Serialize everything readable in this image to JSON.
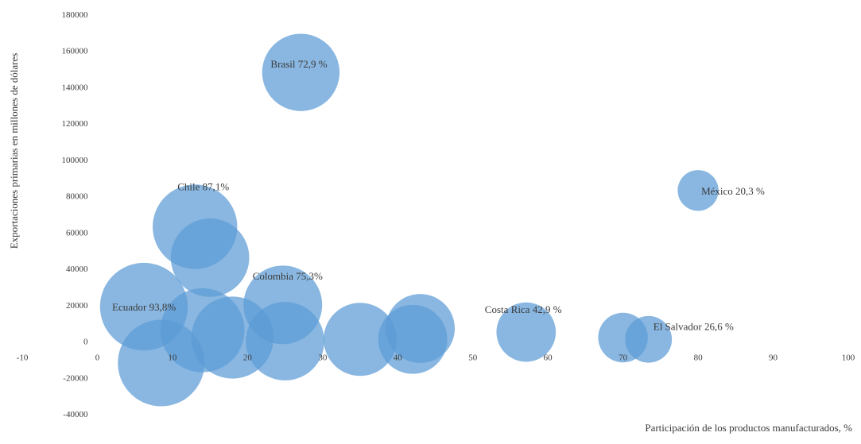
{
  "chart_data": {
    "type": "bubble",
    "xlabel": "Participación de los productos manufacturados, %",
    "ylabel": "Exportaciones primarias en millones de dólares",
    "xlim": [
      -10,
      100
    ],
    "ylim": [
      -40000,
      180000
    ],
    "x_ticks": [
      -10,
      0,
      10,
      20,
      30,
      40,
      50,
      60,
      70,
      80,
      90,
      100
    ],
    "y_ticks": [
      -40000,
      -20000,
      0,
      20000,
      40000,
      60000,
      80000,
      100000,
      120000,
      140000,
      160000,
      180000
    ],
    "grid": false,
    "legend": "none",
    "color": "#5b9bd5",
    "bubbles": [
      {
        "x": 27.1,
        "y": 148000,
        "size": 72.9,
        "label": "Brasil 72,9 %"
      },
      {
        "x": 80.0,
        "y": 83000,
        "size": 20.3,
        "label": "México 20,3 %"
      },
      {
        "x": 13.0,
        "y": 63000,
        "size": 87.1,
        "label": "Chile 87,1%"
      },
      {
        "x": 15.0,
        "y": 46000,
        "size": 75.0,
        "label": ""
      },
      {
        "x": 24.7,
        "y": 20000,
        "size": 75.3,
        "label": "Colombia 75,3%"
      },
      {
        "x": 6.2,
        "y": 19000,
        "size": 93.8,
        "label": "Ecuador 93,8%"
      },
      {
        "x": 57.1,
        "y": 5000,
        "size": 42.9,
        "label": "Costa Rica 42,9 %"
      },
      {
        "x": 73.4,
        "y": 1000,
        "size": 26.6,
        "label": "El Salvador 26,6 %"
      },
      {
        "x": 70.0,
        "y": 2000,
        "size": 30.0,
        "label": ""
      },
      {
        "x": 43.0,
        "y": 7000,
        "size": 58.0,
        "label": ""
      },
      {
        "x": 42.0,
        "y": 1000,
        "size": 58.0,
        "label": ""
      },
      {
        "x": 35.0,
        "y": 1000,
        "size": 65.0,
        "label": ""
      },
      {
        "x": 25.0,
        "y": 0,
        "size": 75.0,
        "label": ""
      },
      {
        "x": 18.0,
        "y": 2000,
        "size": 82.0,
        "label": ""
      },
      {
        "x": 14.0,
        "y": 6000,
        "size": 86.0,
        "label": ""
      },
      {
        "x": 8.5,
        "y": -12000,
        "size": 91.5,
        "label": ""
      }
    ]
  }
}
